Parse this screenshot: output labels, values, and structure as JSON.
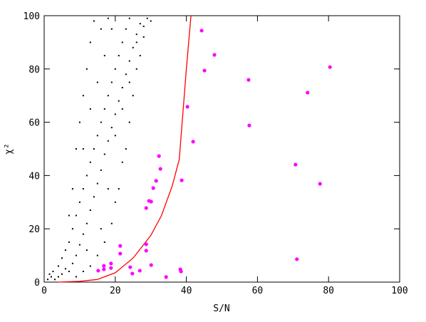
{
  "chart_data": {
    "type": "scatter",
    "x_label": "S/N",
    "y_label": "χ²",
    "xlim": [
      0,
      100
    ],
    "ylim": [
      0,
      100
    ],
    "xticks": [
      0,
      20,
      40,
      60,
      80,
      100
    ],
    "yticks": [
      0,
      20,
      40,
      60,
      80,
      100
    ],
    "series": [
      {
        "style": "points",
        "color": "#000000",
        "x": [
          1,
          2,
          1.5,
          3,
          2.5,
          4,
          5,
          4,
          6,
          5,
          7,
          8,
          6,
          9,
          7,
          10,
          8,
          11,
          9,
          12,
          10,
          13,
          11,
          14,
          12,
          15,
          13,
          16,
          14,
          17,
          15,
          18,
          16,
          19,
          17,
          20,
          18,
          21,
          19,
          22,
          20,
          23,
          21,
          24,
          22,
          25,
          23,
          26,
          24,
          27,
          10,
          11,
          12,
          13,
          14,
          9,
          16,
          18,
          28,
          29,
          26,
          27,
          25,
          24,
          23,
          22,
          21,
          20,
          19,
          17,
          15,
          13,
          11,
          9,
          12,
          16,
          18,
          20,
          22,
          24,
          26,
          28,
          30,
          15,
          17,
          19,
          13,
          11,
          8,
          7
        ],
        "y": [
          1,
          2,
          3,
          1,
          4,
          2,
          3,
          6,
          5,
          9,
          4,
          7,
          12,
          10,
          15,
          14,
          20,
          18,
          25,
          22,
          30,
          27,
          35,
          32,
          40,
          37,
          45,
          42,
          50,
          48,
          55,
          53,
          60,
          58,
          65,
          63,
          70,
          68,
          75,
          73,
          80,
          78,
          85,
          83,
          90,
          88,
          95,
          93,
          99,
          97,
          60,
          70,
          80,
          90,
          98,
          50,
          95,
          99,
          96,
          99,
          80,
          85,
          70,
          60,
          50,
          45,
          35,
          30,
          22,
          15,
          10,
          6,
          4,
          2,
          12,
          20,
          35,
          55,
          65,
          75,
          90,
          92,
          98,
          75,
          85,
          95,
          65,
          50,
          35,
          25
        ]
      },
      {
        "style": "line",
        "color": "#ff0000",
        "x": [
          4,
          10,
          15,
          20,
          25,
          30,
          33,
          36,
          38,
          40,
          41.3
        ],
        "y": [
          0,
          0.3,
          1,
          3.5,
          9,
          17.5,
          25,
          36,
          46,
          80,
          100
        ]
      },
      {
        "style": "points",
        "color": "#ff00ff",
        "x": [
          44.3,
          47.9,
          45.1,
          80.4,
          57.5,
          74.1,
          40.3,
          57.7,
          41.9,
          32.3,
          32.7,
          31.5,
          38.7,
          70.7,
          77.6,
          30.7,
          29.5,
          30.1,
          28.7,
          28.7,
          28.7,
          21.4,
          21.4,
          18.8,
          16.8,
          16.8,
          18.8,
          15.2,
          24.2,
          24.8,
          26.9,
          30.1,
          38.3,
          38.5,
          34.3,
          71.1
        ],
        "y": [
          94.4,
          85.3,
          79.4,
          80.7,
          75.9,
          71.1,
          65.8,
          58.8,
          52.7,
          47.3,
          42.5,
          38.0,
          38.2,
          44.1,
          36.9,
          35.3,
          30.5,
          30.2,
          27.8,
          14.2,
          11.8,
          13.6,
          10.7,
          7.0,
          6.1,
          4.8,
          5.3,
          4.3,
          5.6,
          3.2,
          4.3,
          6.4,
          4.8,
          4.0,
          1.9,
          8.6
        ]
      }
    ]
  }
}
